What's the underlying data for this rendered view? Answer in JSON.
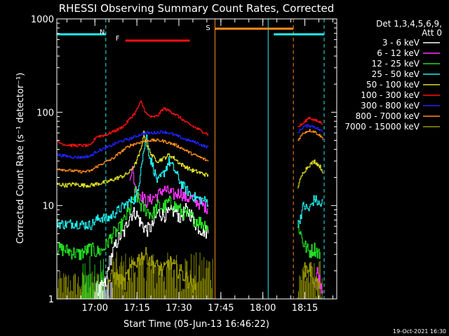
{
  "chart_data": {
    "type": "line",
    "title": "RHESSI Observing Summary Count Rates, Corrected",
    "xlabel": "Start Time (05-Jun-13 16:46:22)",
    "ylabel": "Corrected Count Rate (s⁻¹ detector⁻¹)",
    "yscale": "log",
    "ylim": [
      1,
      1000
    ],
    "xlim_min": [
      0,
      100
    ],
    "x_ticks": [
      {
        "label": "17:00",
        "t": 13.6
      },
      {
        "label": "17:15",
        "t": 28.6
      },
      {
        "label": "17:30",
        "t": 43.6
      },
      {
        "label": "17:45",
        "t": 58.6
      },
      {
        "label": "18:00",
        "t": 73.6
      },
      {
        "label": "18:15",
        "t": 88.6
      }
    ],
    "y_ticks": [
      {
        "label": "1",
        "v": 1
      },
      {
        "label": "10",
        "v": 10
      },
      {
        "label": "100",
        "v": 100
      },
      {
        "label": "1000",
        "v": 1000
      }
    ],
    "legend": {
      "header": "Det 1,3,4,5,6,9,",
      "attenuator": "Att 0",
      "entries": [
        {
          "label": "3 - 6 keV",
          "color": "#ffffff"
        },
        {
          "label": "6 - 12 keV",
          "color": "#ff33ff"
        },
        {
          "label": "12 - 25 keV",
          "color": "#22dd22"
        },
        {
          "label": "25 - 50 keV",
          "color": "#22eeee"
        },
        {
          "label": "50 - 100 keV",
          "color": "#dddd22"
        },
        {
          "label": "100 - 300 keV",
          "color": "#ff1111"
        },
        {
          "label": "300 - 800 keV",
          "color": "#2222ff"
        },
        {
          "label": "800 - 7000 keV",
          "color": "#ff8c1a"
        },
        {
          "label": "7000 - 15000 keV",
          "color": "#999900"
        }
      ]
    },
    "flags": [
      {
        "label": "N",
        "color": "#22eeee",
        "segments": [
          [
            0,
            17.5
          ],
          [
            77.5,
            95.5
          ]
        ]
      },
      {
        "label": "F",
        "color": "#ff1111",
        "segments": [
          [
            24.5,
            47.5
          ]
        ]
      },
      {
        "label": "S",
        "color": "#ff8c1a",
        "segments": [
          [
            56.5,
            84.5
          ]
        ]
      }
    ],
    "event_lines": [
      {
        "t": 17.5,
        "color": "#22eeee",
        "style": "dashed"
      },
      {
        "t": 56.5,
        "color": "#ff8c1a",
        "style": "solid"
      },
      {
        "t": 75.5,
        "color": "#22eeee",
        "style": "solid"
      },
      {
        "t": 84.5,
        "color": "#ff8c1a",
        "style": "dashed"
      },
      {
        "t": 95.5,
        "color": "#22eeee",
        "style": "dashed"
      }
    ],
    "series": [
      {
        "name": "3 - 6 keV",
        "color": "#ffffff",
        "points": [
          [
            14.5,
            1.2
          ],
          [
            17.5,
            1.5
          ],
          [
            18.5,
            2.4
          ],
          [
            20,
            3.2
          ],
          [
            22,
            4.5
          ],
          [
            24,
            5.2
          ],
          [
            26,
            8
          ],
          [
            28,
            8.5
          ],
          [
            30,
            6.5
          ],
          [
            32,
            5.5
          ],
          [
            34,
            6
          ],
          [
            36,
            8.5
          ],
          [
            38,
            8
          ],
          [
            40,
            8.2
          ],
          [
            42,
            9
          ],
          [
            44,
            7.5
          ],
          [
            46,
            9
          ],
          [
            48,
            8
          ],
          [
            50,
            6
          ],
          [
            52,
            5.5
          ],
          [
            54,
            5.2
          ]
        ],
        "points2": []
      },
      {
        "name": "6 - 12 keV",
        "color": "#ff33ff",
        "points": [
          [
            26,
            22
          ],
          [
            27,
            24
          ],
          [
            28,
            15
          ],
          [
            30,
            13
          ],
          [
            32,
            11
          ],
          [
            34,
            12
          ],
          [
            36,
            13
          ],
          [
            38,
            15
          ],
          [
            40,
            14
          ],
          [
            42,
            13
          ],
          [
            44,
            14
          ],
          [
            46,
            12
          ],
          [
            48,
            12
          ],
          [
            50,
            11
          ],
          [
            52,
            10
          ],
          [
            54,
            9.5
          ]
        ],
        "points2": [
          [
            92,
            1.5
          ],
          [
            93,
            2
          ],
          [
            94,
            1.5
          ],
          [
            95,
            1.2
          ]
        ]
      },
      {
        "name": "12 - 25 keV",
        "color": "#22dd22",
        "points": [
          [
            0,
            3.5
          ],
          [
            4,
            3.3
          ],
          [
            8,
            3
          ],
          [
            12,
            3.5
          ],
          [
            14,
            3.2
          ],
          [
            16,
            3.3
          ],
          [
            18,
            4
          ],
          [
            20,
            5
          ],
          [
            22,
            5.5
          ],
          [
            24,
            7
          ],
          [
            26,
            9
          ],
          [
            28,
            14
          ],
          [
            30,
            10
          ],
          [
            32,
            9
          ],
          [
            34,
            8
          ],
          [
            36,
            10
          ],
          [
            38,
            9.5
          ],
          [
            40,
            11
          ],
          [
            42,
            10
          ],
          [
            44,
            9
          ],
          [
            46,
            8
          ],
          [
            48,
            7.5
          ],
          [
            50,
            7
          ],
          [
            52,
            6.5
          ],
          [
            54,
            6
          ]
        ],
        "points2": [
          [
            86,
            6.5
          ],
          [
            88,
            4
          ],
          [
            90,
            3.2
          ],
          [
            92,
            3.5
          ],
          [
            94,
            3
          ]
        ]
      },
      {
        "name": "25 - 50 keV",
        "color": "#22eeee",
        "points": [
          [
            0,
            6.5
          ],
          [
            3,
            6.3
          ],
          [
            6,
            6.5
          ],
          [
            9,
            6.3
          ],
          [
            12,
            6.2
          ],
          [
            14,
            7
          ],
          [
            16,
            7.5
          ],
          [
            18,
            7.2
          ],
          [
            20,
            8
          ],
          [
            22,
            9
          ],
          [
            24,
            10
          ],
          [
            26,
            11
          ],
          [
            28,
            12
          ],
          [
            29,
            14
          ],
          [
            30,
            28
          ],
          [
            32,
            55
          ],
          [
            33,
            34
          ],
          [
            34,
            28
          ],
          [
            35,
            22
          ],
          [
            36,
            18
          ],
          [
            38,
            22
          ],
          [
            40,
            30
          ],
          [
            42,
            24
          ],
          [
            44,
            18
          ],
          [
            46,
            15
          ],
          [
            48,
            13
          ],
          [
            50,
            12
          ],
          [
            52,
            11.5
          ],
          [
            54,
            11
          ]
        ],
        "points2": [
          [
            86,
            6
          ],
          [
            88,
            10
          ],
          [
            90,
            9
          ],
          [
            92,
            12
          ],
          [
            94,
            10
          ],
          [
            95,
            11
          ]
        ]
      },
      {
        "name": "50 - 100 keV",
        "color": "#dddd22",
        "points": [
          [
            0,
            17
          ],
          [
            3,
            16.5
          ],
          [
            6,
            17
          ],
          [
            9,
            16.5
          ],
          [
            12,
            16.5
          ],
          [
            14,
            17
          ],
          [
            16,
            17.5
          ],
          [
            18,
            18
          ],
          [
            20,
            19
          ],
          [
            22,
            20
          ],
          [
            24,
            21
          ],
          [
            26,
            23
          ],
          [
            28,
            28
          ],
          [
            30,
            40
          ],
          [
            31,
            60
          ],
          [
            32,
            45
          ],
          [
            34,
            34
          ],
          [
            36,
            30
          ],
          [
            38,
            32
          ],
          [
            40,
            35
          ],
          [
            42,
            32
          ],
          [
            44,
            28
          ],
          [
            46,
            26
          ],
          [
            48,
            24
          ],
          [
            50,
            23
          ],
          [
            52,
            22
          ],
          [
            54,
            21
          ]
        ],
        "points2": [
          [
            86,
            16
          ],
          [
            88,
            23
          ],
          [
            90,
            27
          ],
          [
            92,
            30
          ],
          [
            94,
            26
          ],
          [
            95,
            23
          ]
        ]
      },
      {
        "name": "100 - 300 keV",
        "color": "#ff1111",
        "points": [
          [
            0,
            48
          ],
          [
            3,
            45
          ],
          [
            6,
            44
          ],
          [
            9,
            44
          ],
          [
            12,
            44
          ],
          [
            14,
            55
          ],
          [
            16,
            56
          ],
          [
            18,
            58
          ],
          [
            20,
            62
          ],
          [
            22,
            66
          ],
          [
            24,
            72
          ],
          [
            26,
            85
          ],
          [
            28,
            100
          ],
          [
            30,
            130
          ],
          [
            31,
            110
          ],
          [
            32,
            95
          ],
          [
            34,
            88
          ],
          [
            36,
            92
          ],
          [
            38,
            110
          ],
          [
            40,
            104
          ],
          [
            42,
            96
          ],
          [
            44,
            87
          ],
          [
            46,
            78
          ],
          [
            48,
            72
          ],
          [
            50,
            67
          ],
          [
            52,
            62
          ],
          [
            54,
            58
          ]
        ],
        "points2": [
          [
            86,
            70
          ],
          [
            88,
            76
          ],
          [
            90,
            88
          ],
          [
            92,
            82
          ],
          [
            94,
            78
          ],
          [
            95,
            76
          ]
        ]
      },
      {
        "name": "300 - 800 keV",
        "color": "#2222ff",
        "points": [
          [
            0,
            35
          ],
          [
            3,
            34
          ],
          [
            6,
            33
          ],
          [
            9,
            33
          ],
          [
            12,
            34
          ],
          [
            14,
            38
          ],
          [
            16,
            40
          ],
          [
            18,
            42
          ],
          [
            20,
            45
          ],
          [
            22,
            48
          ],
          [
            24,
            50
          ],
          [
            26,
            52
          ],
          [
            28,
            55
          ],
          [
            30,
            58
          ],
          [
            32,
            60
          ],
          [
            34,
            60
          ],
          [
            36,
            61
          ],
          [
            38,
            62
          ],
          [
            40,
            60
          ],
          [
            42,
            57
          ],
          [
            44,
            54
          ],
          [
            46,
            51
          ],
          [
            48,
            49
          ],
          [
            50,
            47
          ],
          [
            52,
            44
          ],
          [
            54,
            42
          ]
        ],
        "points2": [
          [
            86,
            60
          ],
          [
            88,
            70
          ],
          [
            90,
            72
          ],
          [
            92,
            70
          ],
          [
            94,
            64
          ],
          [
            95,
            62
          ]
        ]
      },
      {
        "name": "800 - 7000 keV",
        "color": "#ff8c1a",
        "points": [
          [
            0,
            25
          ],
          [
            3,
            24
          ],
          [
            6,
            23.5
          ],
          [
            9,
            23
          ],
          [
            12,
            23.5
          ],
          [
            14,
            26
          ],
          [
            16,
            28
          ],
          [
            18,
            30
          ],
          [
            20,
            32
          ],
          [
            22,
            36
          ],
          [
            24,
            40
          ],
          [
            26,
            44
          ],
          [
            28,
            46
          ],
          [
            30,
            48
          ],
          [
            32,
            50
          ],
          [
            34,
            50
          ],
          [
            36,
            50
          ],
          [
            38,
            49
          ],
          [
            40,
            47
          ],
          [
            42,
            45
          ],
          [
            44,
            42
          ],
          [
            46,
            39
          ],
          [
            48,
            36
          ],
          [
            50,
            34
          ],
          [
            52,
            32
          ],
          [
            54,
            30
          ]
        ],
        "points2": [
          [
            86,
            50
          ],
          [
            88,
            60
          ],
          [
            90,
            64
          ],
          [
            92,
            62
          ],
          [
            94,
            56
          ],
          [
            95,
            52
          ]
        ]
      },
      {
        "name": "7000 - 15000 keV",
        "color": "#999900",
        "points": [
          [
            18,
            1.5
          ],
          [
            20,
            1.8
          ],
          [
            22,
            1.6
          ],
          [
            24,
            1.5
          ],
          [
            26,
            2
          ],
          [
            28,
            2.5
          ],
          [
            30,
            2.8
          ],
          [
            32,
            3
          ],
          [
            34,
            2.4
          ],
          [
            36,
            2.2
          ],
          [
            38,
            2
          ],
          [
            40,
            2.5
          ],
          [
            42,
            2.2
          ],
          [
            44,
            2
          ],
          [
            46,
            1.7
          ],
          [
            48,
            1.5
          ],
          [
            50,
            1.2
          ]
        ],
        "points2": [
          [
            88,
            2
          ],
          [
            90,
            2.2
          ],
          [
            92,
            1.6
          ],
          [
            94,
            1.3
          ]
        ]
      }
    ],
    "noise_cols": [
      {
        "color": "#999900",
        "from": 0,
        "to": 17,
        "lo": 1,
        "hi": 2
      },
      {
        "color": "#22dd22",
        "from": 9,
        "to": 17,
        "lo": 1,
        "hi": 3
      },
      {
        "color": "#ffffff",
        "from": 14,
        "to": 20,
        "lo": 1,
        "hi": 1.8
      },
      {
        "color": "#999900",
        "from": 20,
        "to": 56,
        "lo": 1,
        "hi": 3.2
      },
      {
        "color": "#999900",
        "from": 86,
        "to": 95,
        "lo": 1,
        "hi": 2.6
      }
    ]
  },
  "footer": {
    "timestamp": "19-Oct-2021 16:30"
  }
}
